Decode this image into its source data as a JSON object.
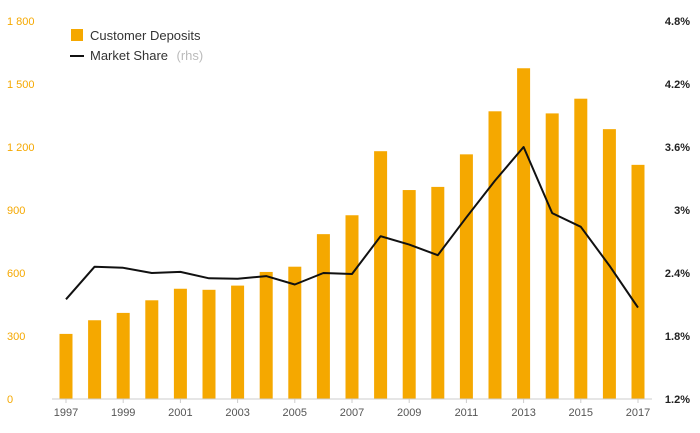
{
  "chart_data": {
    "type": "bar+line",
    "categories": [
      "1997",
      "1998",
      "1999",
      "2000",
      "2001",
      "2002",
      "2003",
      "2004",
      "2005",
      "2006",
      "2007",
      "2008",
      "2009",
      "2010",
      "2011",
      "2012",
      "2013",
      "2014",
      "2015",
      "2016",
      "2017"
    ],
    "series": [
      {
        "name": "Customer Deposits",
        "type": "bar",
        "axis": "left",
        "values": [
          310,
          375,
          410,
          470,
          525,
          520,
          540,
          605,
          630,
          785,
          875,
          1180,
          995,
          1010,
          1165,
          1370,
          1575,
          1360,
          1430,
          1285,
          1115
        ]
      },
      {
        "name": "Market Share",
        "name_suffix": "(rhs)",
        "type": "line",
        "axis": "right",
        "values": [
          2.15,
          2.46,
          2.45,
          2.4,
          2.41,
          2.35,
          2.345,
          2.37,
          2.29,
          2.4,
          2.39,
          2.75,
          2.67,
          2.57,
          2.93,
          3.28,
          3.6,
          2.97,
          2.84,
          2.47,
          2.07
        ]
      }
    ],
    "left_axis": {
      "min": 0,
      "max": 1800,
      "ticks": [
        "0",
        "300",
        "600",
        "900",
        "1 200",
        "1 500",
        "1 800"
      ]
    },
    "right_axis": {
      "min": 1.2,
      "max": 4.8,
      "ticks": [
        "1.2%",
        "1.8%",
        "2.4%",
        "3%",
        "3.6%",
        "4.2%",
        "4.8%"
      ]
    },
    "x_tick_labels": [
      "1997",
      "1999",
      "2001",
      "2003",
      "2005",
      "2007",
      "2009",
      "2011",
      "2013",
      "2015",
      "2017"
    ],
    "legend": {
      "position": "top-left",
      "deposits_label": "Customer Deposits",
      "share_label": "Market Share",
      "share_suffix": "(rhs)"
    },
    "colors": {
      "bar": "#f5a800",
      "line": "#111111",
      "left_ticks": "#f5a800",
      "axis": "#cccccc"
    },
    "grid": false
  }
}
